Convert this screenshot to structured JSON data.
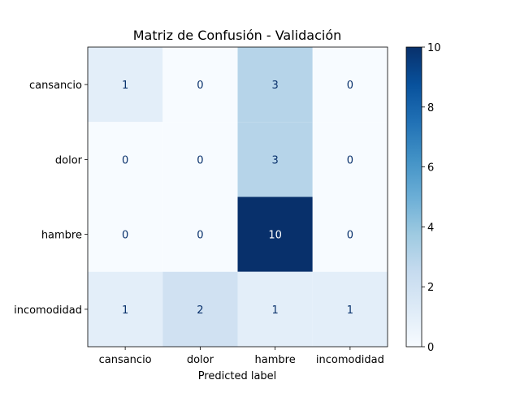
{
  "chart_data": {
    "type": "heatmap",
    "title": "Matriz de Confusión - Validación",
    "xlabel": "Predicted label",
    "ylabel": "",
    "x_categories": [
      "cansancio",
      "dolor",
      "hambre",
      "incomodidad"
    ],
    "y_categories": [
      "cansancio",
      "dolor",
      "hambre",
      "incomodidad"
    ],
    "values": [
      [
        1,
        0,
        3,
        0
      ],
      [
        0,
        0,
        3,
        0
      ],
      [
        0,
        0,
        10,
        0
      ],
      [
        1,
        2,
        1,
        1
      ]
    ],
    "colorscale": "Blues",
    "vmin": 0,
    "vmax": 10,
    "colorbar_ticks": [
      0,
      2,
      4,
      6,
      8,
      10
    ]
  }
}
